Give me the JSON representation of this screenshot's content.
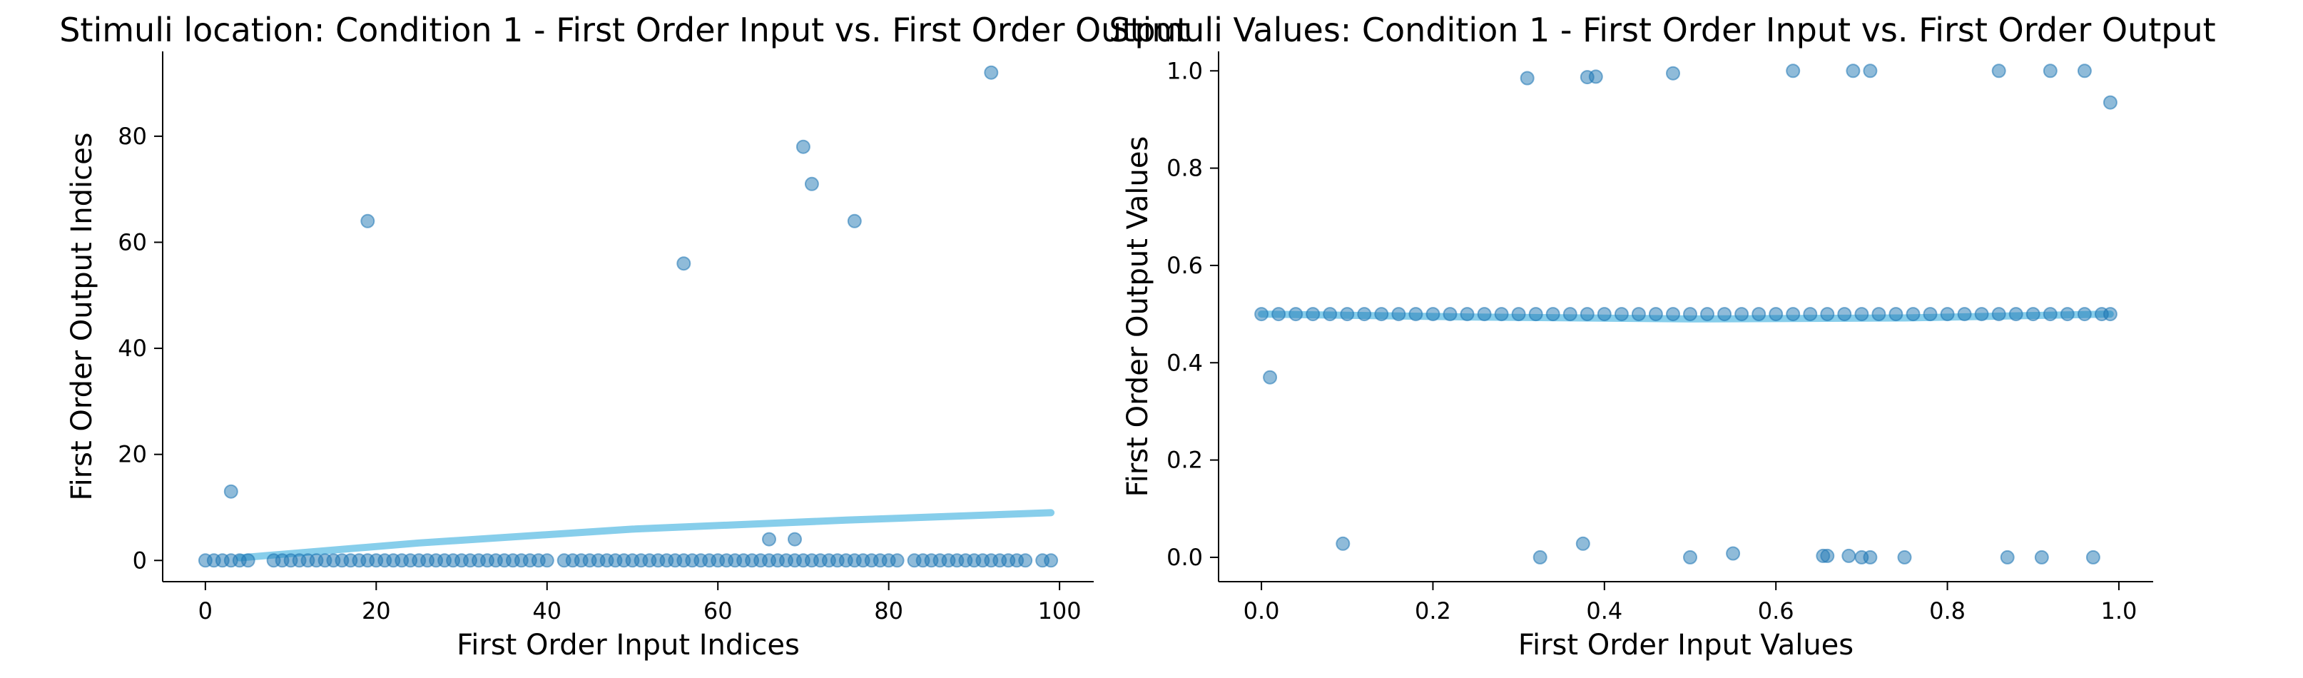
{
  "chart_data": [
    {
      "type": "scatter",
      "title": "Stimuli location: Condition 1 - First Order Input vs. First Order Output",
      "xlabel": "First Order Input Indices",
      "ylabel": "First Order Output Indices",
      "xlim": [
        -5,
        104
      ],
      "ylim": [
        -4,
        96
      ],
      "xticks": [
        0,
        20,
        40,
        60,
        80,
        100
      ],
      "yticks": [
        0,
        20,
        40,
        60,
        80
      ],
      "grid": false,
      "point_color": "#1f77b4",
      "fit_color": "#87ceeb",
      "x": [
        0,
        1,
        2,
        3,
        4,
        5,
        8,
        9,
        10,
        11,
        12,
        13,
        14,
        15,
        16,
        17,
        18,
        19,
        20,
        21,
        22,
        23,
        24,
        25,
        26,
        27,
        28,
        29,
        30,
        31,
        32,
        33,
        34,
        35,
        36,
        37,
        38,
        39,
        40,
        42,
        43,
        44,
        45,
        46,
        47,
        48,
        49,
        50,
        51,
        52,
        53,
        54,
        55,
        56,
        57,
        58,
        59,
        60,
        61,
        62,
        63,
        64,
        65,
        66,
        67,
        68,
        69,
        70,
        71,
        72,
        73,
        74,
        75,
        76,
        77,
        78,
        79,
        80,
        81,
        83,
        84,
        85,
        86,
        87,
        88,
        89,
        90,
        91,
        92,
        93,
        94,
        95,
        96,
        98,
        99,
        3,
        19,
        56,
        66,
        69,
        70,
        71,
        76,
        92
      ],
      "y": [
        0,
        0,
        0,
        0,
        0,
        0,
        0,
        0,
        0,
        0,
        0,
        0,
        0,
        0,
        0,
        0,
        0,
        0,
        0,
        0,
        0,
        0,
        0,
        0,
        0,
        0,
        0,
        0,
        0,
        0,
        0,
        0,
        0,
        0,
        0,
        0,
        0,
        0,
        0,
        0,
        0,
        0,
        0,
        0,
        0,
        0,
        0,
        0,
        0,
        0,
        0,
        0,
        0,
        0,
        0,
        0,
        0,
        0,
        0,
        0,
        0,
        0,
        0,
        0,
        0,
        0,
        0,
        0,
        0,
        0,
        0,
        0,
        0,
        0,
        0,
        0,
        0,
        0,
        0,
        0,
        0,
        0,
        0,
        0,
        0,
        0,
        0,
        0,
        0,
        0,
        0,
        0,
        0,
        0,
        0,
        13,
        64,
        56,
        4,
        4,
        78,
        71,
        64,
        92
      ],
      "fit": {
        "x": [
          4,
          25,
          50,
          75,
          99
        ],
        "y": [
          0.5,
          3.3,
          5.9,
          7.6,
          9.0
        ]
      }
    },
    {
      "type": "scatter",
      "title": "Stimuli Values: Condition 1 - First Order Input vs. First Order Output",
      "xlabel": "First Order Input Values",
      "ylabel": "First Order Output Values",
      "xlim": [
        -0.05,
        1.04
      ],
      "ylim": [
        -0.05,
        1.04
      ],
      "xticks": [
        0.0,
        0.2,
        0.4,
        0.6,
        0.8,
        1.0
      ],
      "yticks": [
        0.0,
        0.2,
        0.4,
        0.6,
        0.8,
        1.0
      ],
      "grid": false,
      "point_color": "#1f77b4",
      "fit_color": "#87ceeb",
      "x": [
        0.0,
        0.02,
        0.04,
        0.06,
        0.08,
        0.1,
        0.12,
        0.14,
        0.16,
        0.18,
        0.2,
        0.22,
        0.24,
        0.26,
        0.28,
        0.3,
        0.32,
        0.34,
        0.36,
        0.38,
        0.4,
        0.42,
        0.44,
        0.46,
        0.48,
        0.5,
        0.52,
        0.54,
        0.56,
        0.58,
        0.6,
        0.62,
        0.64,
        0.66,
        0.68,
        0.7,
        0.72,
        0.74,
        0.76,
        0.78,
        0.8,
        0.82,
        0.84,
        0.86,
        0.88,
        0.9,
        0.92,
        0.94,
        0.96,
        0.98,
        0.99,
        0.31,
        0.38,
        0.39,
        0.48,
        0.62,
        0.69,
        0.71,
        0.86,
        0.92,
        0.96,
        0.99,
        0.01,
        0.095,
        0.325,
        0.375,
        0.5,
        0.55,
        0.655,
        0.66,
        0.685,
        0.7,
        0.71,
        0.75,
        0.87,
        0.91,
        0.97
      ],
      "y": [
        0.5,
        0.5,
        0.5,
        0.5,
        0.5,
        0.5,
        0.5,
        0.5,
        0.5,
        0.5,
        0.5,
        0.5,
        0.5,
        0.5,
        0.5,
        0.5,
        0.5,
        0.5,
        0.5,
        0.5,
        0.5,
        0.5,
        0.5,
        0.5,
        0.5,
        0.5,
        0.5,
        0.5,
        0.5,
        0.5,
        0.5,
        0.5,
        0.5,
        0.5,
        0.5,
        0.5,
        0.5,
        0.5,
        0.5,
        0.5,
        0.5,
        0.5,
        0.5,
        0.5,
        0.5,
        0.5,
        0.5,
        0.5,
        0.5,
        0.5,
        0.5,
        0.985,
        0.987,
        0.988,
        0.995,
        1.0,
        1.0,
        1.0,
        1.0,
        1.0,
        1.0,
        0.935,
        0.37,
        0.028,
        0.0,
        0.028,
        0.0,
        0.008,
        0.003,
        0.003,
        0.003,
        0.0,
        0.0,
        0.0,
        0.0,
        0.0,
        0.0
      ],
      "fit": {
        "x": [
          0.0,
          0.25,
          0.5,
          0.75,
          0.99
        ],
        "y": [
          0.5,
          0.494,
          0.49,
          0.492,
          0.5
        ]
      }
    }
  ]
}
